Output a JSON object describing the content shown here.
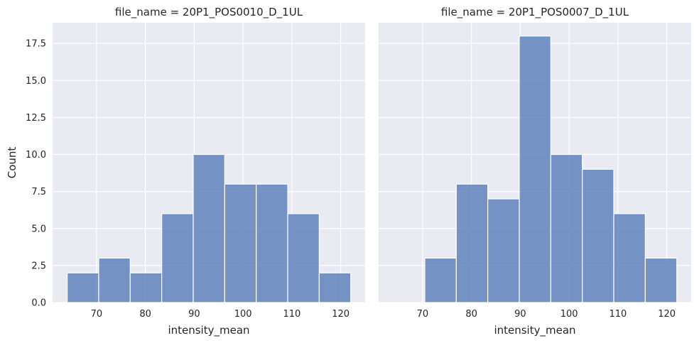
{
  "chart_data": [
    {
      "type": "bar",
      "title": "file_name = 20P1_POS0010_D_1UL",
      "xlabel": "intensity_mean",
      "ylabel": "Count",
      "xlim": [
        61,
        125
      ],
      "ylim": [
        0,
        18.9
      ],
      "xticks": [
        70,
        80,
        90,
        100,
        110,
        120
      ],
      "yticks": [
        0.0,
        2.5,
        5.0,
        7.5,
        10.0,
        12.5,
        15.0,
        17.5
      ],
      "bin_edges": [
        64,
        70.45,
        76.9,
        83.35,
        89.8,
        96.25,
        102.7,
        109.15,
        115.6,
        122.05
      ],
      "values": [
        2,
        3,
        2,
        6,
        10,
        8,
        8,
        6,
        2
      ],
      "grid": true
    },
    {
      "type": "bar",
      "title": "file_name = 20P1_POS0007_D_1UL",
      "xlabel": "intensity_mean",
      "ylabel": "",
      "xlim": [
        61,
        125
      ],
      "ylim": [
        0,
        18.9
      ],
      "xticks": [
        70,
        80,
        90,
        100,
        110,
        120
      ],
      "yticks": [
        0.0,
        2.5,
        5.0,
        7.5,
        10.0,
        12.5,
        15.0,
        17.5
      ],
      "bin_edges": [
        64,
        70.45,
        76.9,
        83.35,
        89.8,
        96.25,
        102.7,
        109.15,
        115.6,
        122.05
      ],
      "values": [
        0,
        3,
        8,
        7,
        18,
        10,
        9,
        6,
        3
      ],
      "grid": true
    }
  ]
}
